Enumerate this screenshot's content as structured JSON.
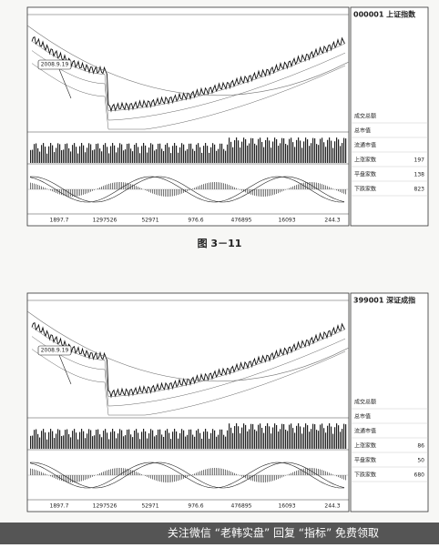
{
  "caption": "图 3－11",
  "watermark": "关注微信 “老韩实盘” 回复 “指标” 免费领取",
  "figures": [
    {
      "code_title": "000001 上证指数",
      "annotation": "2008.9.19",
      "side_rows": [
        [
          "成交总额",
          ""
        ],
        [
          "总市值",
          ""
        ],
        [
          "流通市值",
          ""
        ],
        [
          "上涨家数",
          "197"
        ],
        [
          "平盘家数",
          "138"
        ],
        [
          "下跌家数",
          "823"
        ]
      ],
      "bottom_values": [
        "1897.7",
        "1297526",
        "52971",
        "976.6",
        "476895",
        "16093",
        "244.3"
      ]
    },
    {
      "code_title": "399001 深证成指",
      "annotation": "2008.9.19",
      "side_rows": [
        [
          "成交总额",
          ""
        ],
        [
          "总市值",
          ""
        ],
        [
          "流通市值",
          ""
        ],
        [
          "上涨家数",
          "86"
        ],
        [
          "平盘家数",
          "50"
        ],
        [
          "下跌家数",
          "680"
        ]
      ],
      "bottom_values": [
        "1897.7",
        "1297526",
        "52971",
        "976.6",
        "476895",
        "16093",
        "244.3"
      ]
    }
  ]
}
